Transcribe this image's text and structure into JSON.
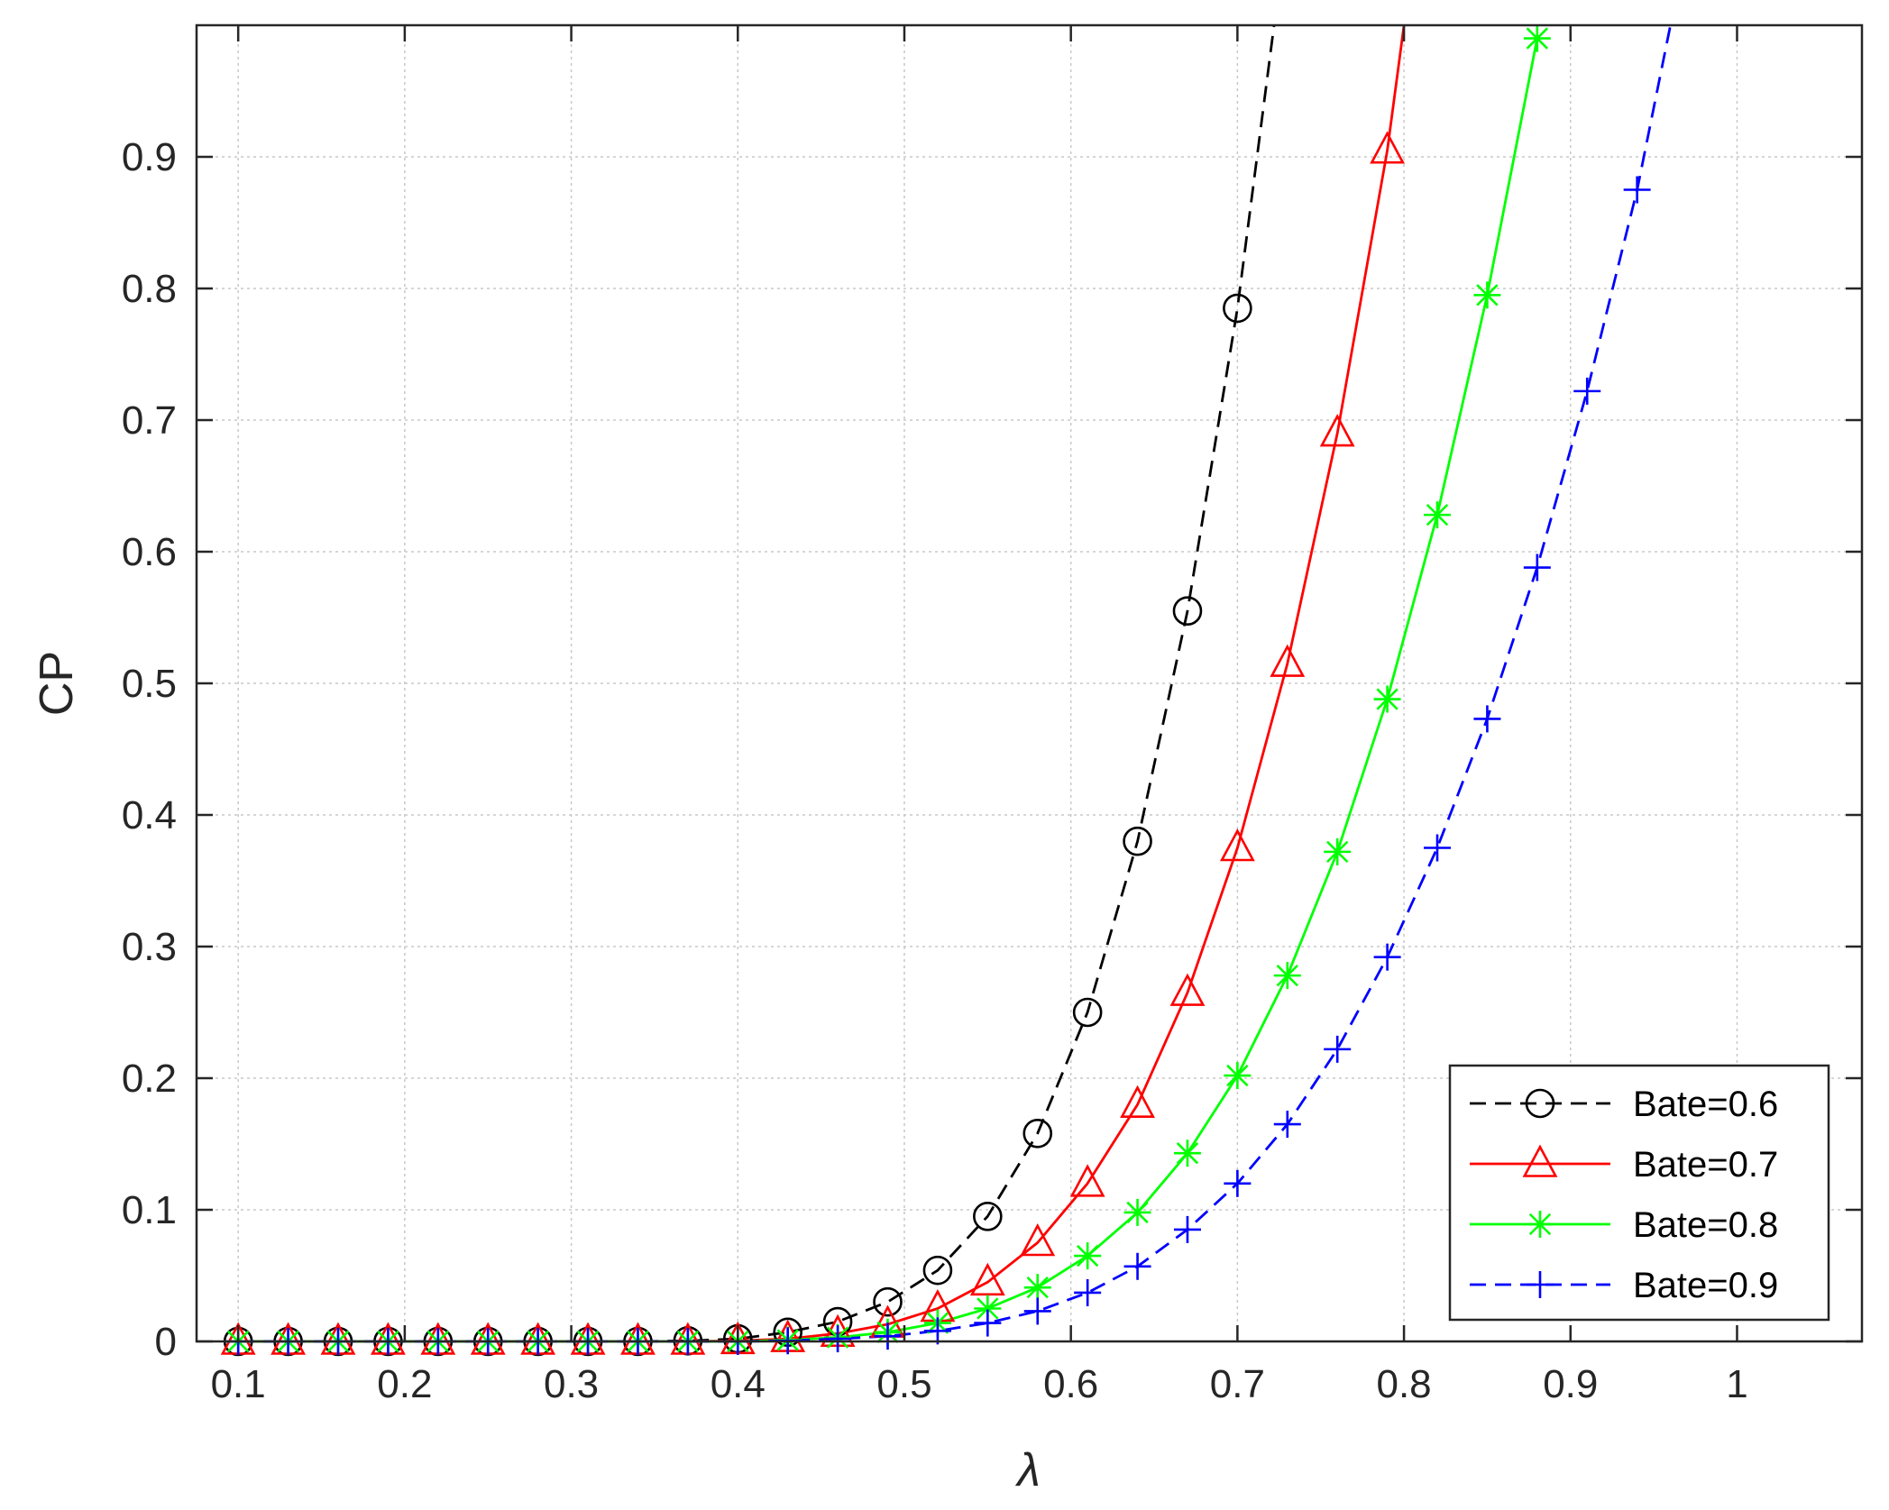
{
  "chart_data": {
    "type": "line",
    "title": "",
    "xlabel": "λ",
    "ylabel": "CP",
    "xlim": [
      0.075,
      1.075
    ],
    "ylim": [
      0,
      1.0
    ],
    "xticks": [
      0.1,
      0.2,
      0.3,
      0.4,
      0.5,
      0.6,
      0.7,
      0.8,
      0.9,
      1
    ],
    "xtick_labels": [
      "0.1",
      "0.2",
      "0.3",
      "0.4",
      "0.5",
      "0.6",
      "0.7",
      "0.8",
      "0.9",
      "1"
    ],
    "yticks": [
      0,
      0.1,
      0.2,
      0.3,
      0.4,
      0.5,
      0.6,
      0.7,
      0.8,
      0.9
    ],
    "ytick_labels": [
      "0",
      "0.1",
      "0.2",
      "0.3",
      "0.4",
      "0.5",
      "0.6",
      "0.7",
      "0.8",
      "0.9"
    ],
    "grid": true,
    "legend_position": "bottom-right",
    "series": [
      {
        "name": "Bate=0.6",
        "color": "#000000",
        "line_style": "dashed",
        "marker": "circle",
        "x": [
          0.1,
          0.13,
          0.16,
          0.19,
          0.22,
          0.25,
          0.28,
          0.31,
          0.34,
          0.37,
          0.4,
          0.43,
          0.46,
          0.49,
          0.52,
          0.55,
          0.58,
          0.61,
          0.64,
          0.67,
          0.7,
          0.722
        ],
        "y": [
          0,
          0,
          0,
          0,
          0,
          0,
          0,
          0,
          0,
          0.0005,
          0.002,
          0.007,
          0.015,
          0.03,
          0.054,
          0.095,
          0.158,
          0.25,
          0.38,
          0.555,
          0.785,
          1.0
        ],
        "marker_x": [
          0.1,
          0.13,
          0.16,
          0.19,
          0.22,
          0.25,
          0.28,
          0.31,
          0.34,
          0.37,
          0.4,
          0.43,
          0.46,
          0.49,
          0.52,
          0.55,
          0.58,
          0.61,
          0.64,
          0.67,
          0.7
        ],
        "marker_y": [
          0,
          0,
          0,
          0,
          0,
          0,
          0,
          0,
          0,
          0.0005,
          0.002,
          0.007,
          0.015,
          0.03,
          0.054,
          0.095,
          0.158,
          0.25,
          0.38,
          0.555,
          0.785
        ]
      },
      {
        "name": "Bate=0.7",
        "color": "#ff0000",
        "line_style": "solid",
        "marker": "triangle",
        "x": [
          0.1,
          0.13,
          0.16,
          0.19,
          0.22,
          0.25,
          0.28,
          0.31,
          0.34,
          0.37,
          0.4,
          0.43,
          0.46,
          0.49,
          0.52,
          0.55,
          0.58,
          0.61,
          0.64,
          0.67,
          0.7,
          0.73,
          0.76,
          0.79,
          0.8
        ],
        "y": [
          0,
          0,
          0,
          0,
          0,
          0,
          0,
          0,
          0,
          0,
          0.0005,
          0.002,
          0.006,
          0.013,
          0.025,
          0.045,
          0.075,
          0.12,
          0.18,
          0.265,
          0.375,
          0.515,
          0.69,
          0.905,
          1.0
        ],
        "marker_x": [
          0.1,
          0.13,
          0.16,
          0.19,
          0.22,
          0.25,
          0.28,
          0.31,
          0.34,
          0.37,
          0.4,
          0.43,
          0.46,
          0.49,
          0.52,
          0.55,
          0.58,
          0.61,
          0.64,
          0.67,
          0.7,
          0.73,
          0.76,
          0.79
        ],
        "marker_y": [
          0,
          0,
          0,
          0,
          0,
          0,
          0,
          0,
          0,
          0,
          0.0005,
          0.002,
          0.006,
          0.013,
          0.025,
          0.045,
          0.075,
          0.12,
          0.18,
          0.265,
          0.375,
          0.515,
          0.69,
          0.905
        ]
      },
      {
        "name": "Bate=0.8",
        "color": "#00ff00",
        "line_style": "solid",
        "marker": "asterisk",
        "x": [
          0.1,
          0.13,
          0.16,
          0.19,
          0.22,
          0.25,
          0.28,
          0.31,
          0.34,
          0.37,
          0.4,
          0.43,
          0.46,
          0.49,
          0.52,
          0.55,
          0.58,
          0.61,
          0.64,
          0.67,
          0.7,
          0.73,
          0.76,
          0.79,
          0.82,
          0.85,
          0.88
        ],
        "y": [
          0,
          0,
          0,
          0,
          0,
          0,
          0,
          0,
          0,
          0,
          0,
          0.001,
          0.003,
          0.007,
          0.014,
          0.025,
          0.041,
          0.065,
          0.098,
          0.143,
          0.202,
          0.278,
          0.372,
          0.488,
          0.628,
          0.795,
          0.99
        ],
        "marker_x": [
          0.1,
          0.13,
          0.16,
          0.19,
          0.22,
          0.25,
          0.28,
          0.31,
          0.34,
          0.37,
          0.4,
          0.43,
          0.46,
          0.49,
          0.52,
          0.55,
          0.58,
          0.61,
          0.64,
          0.67,
          0.7,
          0.73,
          0.76,
          0.79,
          0.82,
          0.85,
          0.88
        ],
        "marker_y": [
          0,
          0,
          0,
          0,
          0,
          0,
          0,
          0,
          0,
          0,
          0,
          0.001,
          0.003,
          0.007,
          0.014,
          0.025,
          0.041,
          0.065,
          0.098,
          0.143,
          0.202,
          0.278,
          0.372,
          0.488,
          0.628,
          0.795,
          0.99
        ]
      },
      {
        "name": "Bate=0.9",
        "color": "#0000ff",
        "line_style": "dashed",
        "marker": "plus",
        "x": [
          0.1,
          0.13,
          0.16,
          0.19,
          0.22,
          0.25,
          0.28,
          0.31,
          0.34,
          0.37,
          0.4,
          0.43,
          0.46,
          0.49,
          0.52,
          0.55,
          0.58,
          0.61,
          0.64,
          0.67,
          0.7,
          0.73,
          0.76,
          0.79,
          0.82,
          0.85,
          0.88,
          0.91,
          0.94,
          0.96
        ],
        "y": [
          0,
          0,
          0,
          0,
          0,
          0,
          0,
          0,
          0,
          0,
          0,
          0.0005,
          0.002,
          0.004,
          0.008,
          0.014,
          0.023,
          0.037,
          0.057,
          0.085,
          0.12,
          0.165,
          0.222,
          0.292,
          0.375,
          0.473,
          0.588,
          0.722,
          0.875,
          1.0
        ],
        "marker_x": [
          0.1,
          0.13,
          0.16,
          0.19,
          0.22,
          0.25,
          0.28,
          0.31,
          0.34,
          0.37,
          0.4,
          0.43,
          0.46,
          0.49,
          0.52,
          0.55,
          0.58,
          0.61,
          0.64,
          0.67,
          0.7,
          0.73,
          0.76,
          0.79,
          0.82,
          0.85,
          0.88,
          0.91,
          0.94
        ],
        "marker_y": [
          0,
          0,
          0,
          0,
          0,
          0,
          0,
          0,
          0,
          0,
          0,
          0.0005,
          0.002,
          0.004,
          0.008,
          0.014,
          0.023,
          0.037,
          0.057,
          0.085,
          0.12,
          0.165,
          0.222,
          0.292,
          0.375,
          0.473,
          0.588,
          0.722,
          0.875
        ]
      }
    ]
  }
}
